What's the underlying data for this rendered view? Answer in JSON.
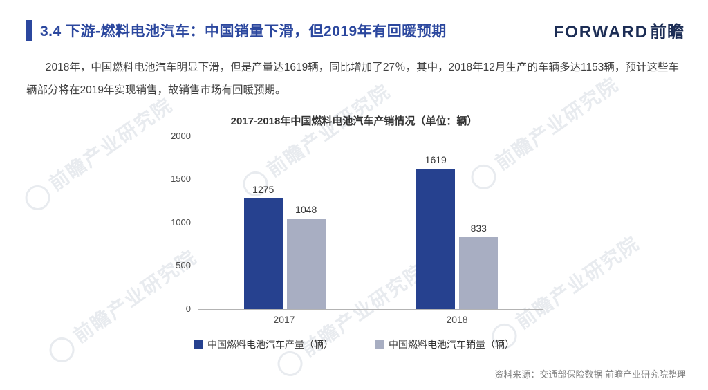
{
  "accent_color": "#2B479E",
  "header": {
    "title": "3.4 下游-燃料电池汽车：中国销量下滑，但2019年有回暖预期",
    "logo_en": "FORWARD",
    "logo_cn": "前瞻"
  },
  "body": {
    "paragraph": "2018年，中国燃料电池汽车明显下滑，但是产量达1619辆，同比增加了27％，其中，2018年12月生产的车辆多达1153辆，预计这些车辆部分将在2019年实现销售，故销售市场有回暖预期。"
  },
  "chart_data": {
    "type": "bar",
    "title": "2017-2018年中国燃料电池汽车产销情况（单位：辆）",
    "categories": [
      "2017",
      "2018"
    ],
    "series": [
      {
        "name": "中国燃料电池汽车产量（辆）",
        "values": [
          1275,
          1619
        ],
        "color": "#26418F"
      },
      {
        "name": "中国燃料电池汽车销量（辆）",
        "values": [
          1048,
          833
        ],
        "color": "#A8AEC2"
      }
    ],
    "xlabel": "",
    "ylabel": "",
    "ylim": [
      0,
      2000
    ],
    "yticks": [
      0,
      500,
      1000,
      1500,
      2000
    ],
    "grid": false,
    "legend_position": "bottom"
  },
  "footer": {
    "source": "资料来源：交通部保险数据 前瞻产业研究院整理"
  },
  "watermark": "前瞻产业研究院"
}
